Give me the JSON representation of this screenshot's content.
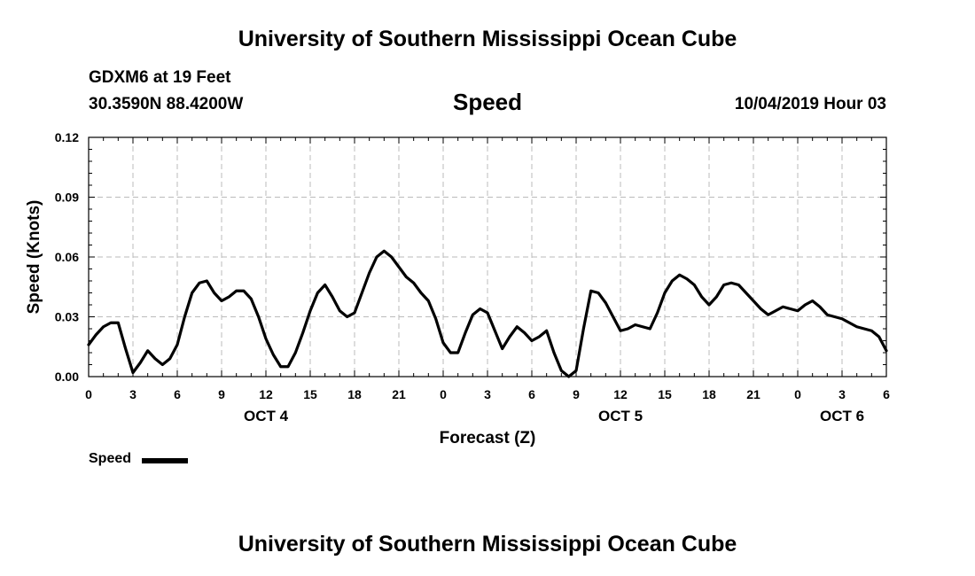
{
  "header": {
    "title_top": "University of Southern Mississippi Ocean Cube",
    "station": "GDXM6 at 19 Feet",
    "coords": "30.3590N 88.4200W",
    "variable": "Speed",
    "datetime": "10/04/2019 Hour 03"
  },
  "footer": {
    "title_bottom": "University of Southern Mississippi Ocean Cube"
  },
  "legend": {
    "label": "Speed"
  },
  "chart_data": {
    "type": "line",
    "title": "Speed",
    "xlabel": "Forecast (Z)",
    "ylabel": "Speed (Knots)",
    "ylim": [
      0,
      0.12
    ],
    "yticks": [
      0,
      0.03,
      0.06,
      0.09,
      0.12
    ],
    "ytick_labels": [
      "0.00",
      "0.03",
      "0.06",
      "0.09",
      "0.12"
    ],
    "xlim": [
      0,
      54
    ],
    "xtick_labels": [
      "0",
      "3",
      "6",
      "9",
      "12",
      "15",
      "18",
      "21",
      "0",
      "3",
      "6",
      "9",
      "12",
      "15",
      "18",
      "21",
      "0",
      "3",
      "6"
    ],
    "day_labels": [
      {
        "label": "OCT 4",
        "x": 12
      },
      {
        "label": "OCT 5",
        "x": 36
      },
      {
        "label": "OCT 6",
        "x": 51
      }
    ],
    "grid": true,
    "series": [
      {
        "name": "Speed",
        "color": "#000000",
        "x": [
          0,
          0.5,
          1,
          1.5,
          2,
          2.5,
          3,
          3.5,
          4,
          4.5,
          5,
          5.5,
          6,
          6.5,
          7,
          7.5,
          8,
          8.5,
          9,
          9.5,
          10,
          10.5,
          11,
          11.5,
          12,
          12.5,
          13,
          13.5,
          14,
          14.5,
          15,
          15.5,
          16,
          16.5,
          17,
          17.5,
          18,
          18.5,
          19,
          19.5,
          20,
          20.5,
          21,
          21.5,
          22,
          22.5,
          23,
          23.5,
          24,
          24.5,
          25,
          25.5,
          26,
          26.5,
          27,
          27.5,
          28,
          28.5,
          29,
          29.5,
          30,
          30.5,
          31,
          31.5,
          32,
          32.5,
          33,
          33.5,
          34,
          34.5,
          35,
          35.5,
          36,
          36.5,
          37,
          37.5,
          38,
          38.5,
          39,
          39.5,
          40,
          40.5,
          41,
          41.5,
          42,
          42.5,
          43,
          43.5,
          44,
          44.5,
          45,
          45.5,
          46,
          46.5,
          47,
          47.5,
          48,
          48.5,
          49,
          49.5,
          50,
          50.5,
          51,
          51.5,
          52,
          52.5,
          53,
          53.5,
          54
        ],
        "values": [
          0.016,
          0.021,
          0.025,
          0.027,
          0.027,
          0.014,
          0.002,
          0.007,
          0.013,
          0.009,
          0.006,
          0.009,
          0.016,
          0.03,
          0.042,
          0.047,
          0.048,
          0.042,
          0.038,
          0.04,
          0.043,
          0.043,
          0.039,
          0.03,
          0.019,
          0.011,
          0.005,
          0.005,
          0.012,
          0.022,
          0.033,
          0.042,
          0.046,
          0.04,
          0.033,
          0.03,
          0.032,
          0.042,
          0.052,
          0.06,
          0.063,
          0.06,
          0.055,
          0.05,
          0.047,
          0.042,
          0.038,
          0.029,
          0.017,
          0.012,
          0.012,
          0.022,
          0.031,
          0.034,
          0.032,
          0.023,
          0.014,
          0.02,
          0.025,
          0.022,
          0.018,
          0.02,
          0.023,
          0.012,
          0.003,
          0.0,
          0.003,
          0.024,
          0.043,
          0.042,
          0.037,
          0.03,
          0.023,
          0.024,
          0.026,
          0.025,
          0.024,
          0.032,
          0.042,
          0.048,
          0.051,
          0.049,
          0.046,
          0.04,
          0.036,
          0.04,
          0.046,
          0.047,
          0.046,
          0.042,
          0.038,
          0.034,
          0.031,
          0.033,
          0.035,
          0.034,
          0.033,
          0.036,
          0.038,
          0.035,
          0.031,
          0.03,
          0.029,
          0.027,
          0.025,
          0.024,
          0.023,
          0.02,
          0.013
        ]
      }
    ]
  }
}
